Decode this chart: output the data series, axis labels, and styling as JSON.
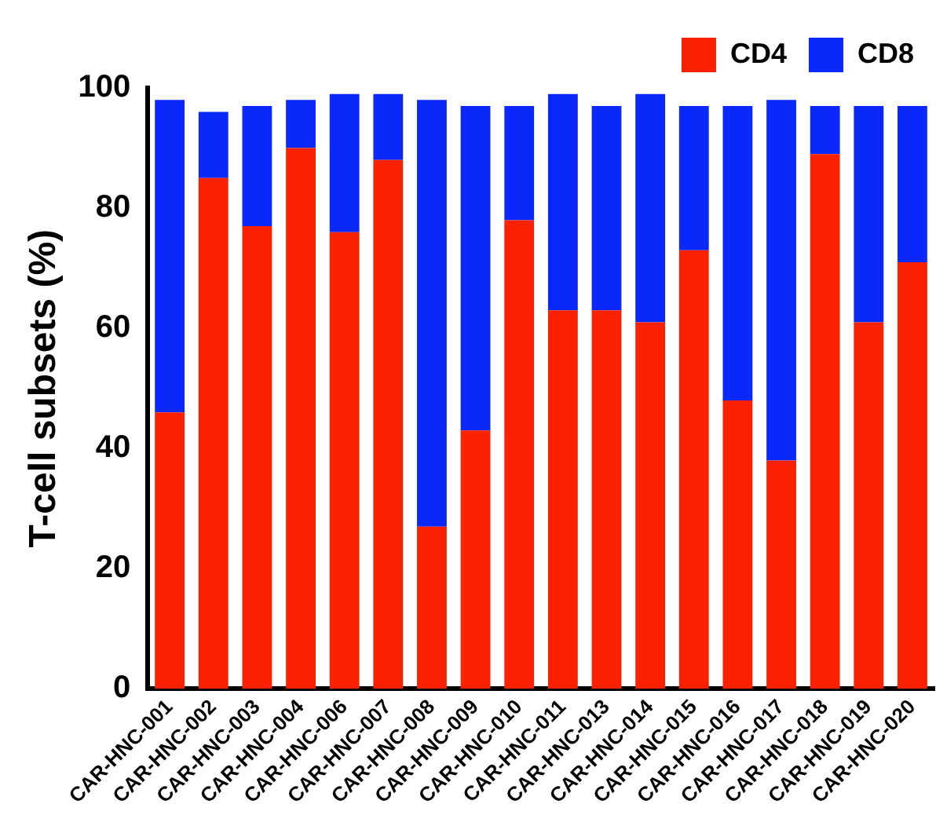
{
  "chart_data": {
    "type": "bar",
    "stacked": true,
    "ylabel": "T-cell subsets (%)",
    "categories": [
      "CAR-HNC-001",
      "CAR-HNC-002",
      "CAR-HNC-003",
      "CAR-HNC-004",
      "CAR-HNC-006",
      "CAR-HNC-007",
      "CAR-HNC-008",
      "CAR-HNC-009",
      "CAR-HNC-010",
      "CAR-HNC-011",
      "CAR-HNC-013",
      "CAR-HNC-014",
      "CAR-HNC-015",
      "CAR-HNC-016",
      "CAR-HNC-017",
      "CAR-HNC-018",
      "CAR-HNC-019",
      "CAR-HNC-020"
    ],
    "series": [
      {
        "name": "CD4",
        "color": "#fa2100",
        "values": [
          46,
          85,
          77,
          90,
          76,
          88,
          27,
          43,
          78,
          63,
          63,
          61,
          73,
          48,
          38,
          89,
          61,
          71
        ]
      },
      {
        "name": "CD8",
        "color": "#0a28fa",
        "values": [
          52,
          11,
          20,
          8,
          23,
          11,
          71,
          54,
          19,
          36,
          34,
          38,
          24,
          49,
          60,
          8,
          36,
          26
        ]
      }
    ],
    "ylim": [
      0,
      100
    ],
    "yticks": [
      0,
      20,
      40,
      60,
      80,
      100
    ],
    "grid": false,
    "legend": "top right"
  }
}
